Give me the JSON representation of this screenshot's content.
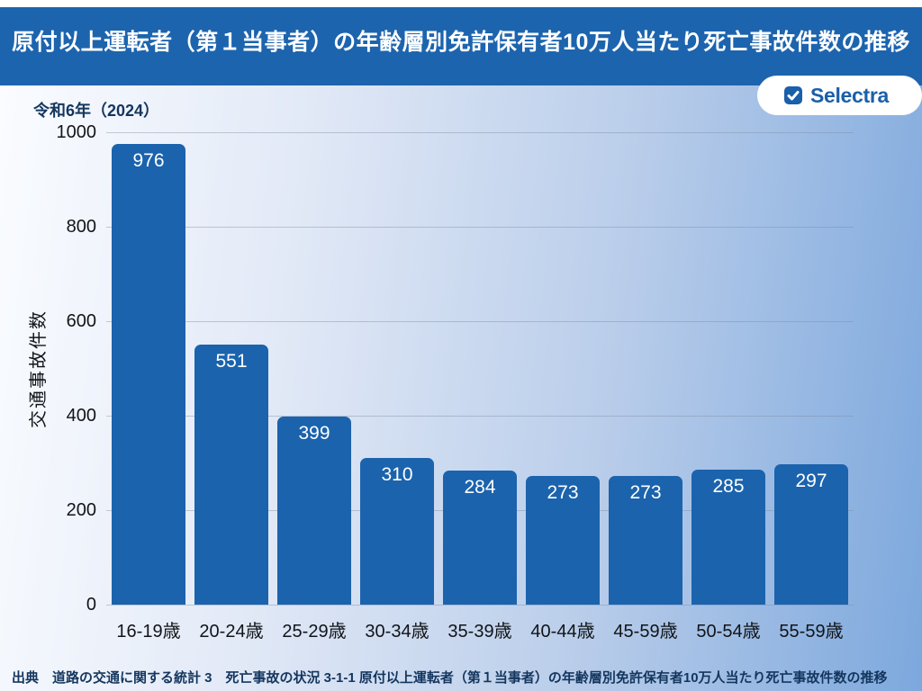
{
  "header": {
    "title": "原付以上運転者（第１当事者）の年齢層別免許保有者10万人当たり死亡事故件数の推移"
  },
  "badge": {
    "label": "Selectra",
    "icon": "check-square-icon",
    "text_color": "#1a5fa9"
  },
  "era_label": "令和6年（2024）",
  "source": {
    "text": "出典　道路の交通に関する統計 3　死亡事故の状況 3-1-1 原付以上運転者（第１当事者）の年齢層別免許保有者10万人当たり死亡事故件数の推移"
  },
  "colors": {
    "header_bg": "#1d64ae",
    "bar": "#1b63ad",
    "value_label": "#ffffff",
    "tick_text": "#111418",
    "era_and_source_text": "#14365e",
    "badge_text": "#1a5fa9",
    "background_gradient_left": "#fafcff",
    "background_gradient_right": "#7da8dd",
    "gridline": "rgba(125,138,160,0.42)"
  },
  "chart_data": {
    "type": "bar",
    "title": "令和6年（2024）",
    "categories": [
      "16-19歳",
      "20-24歳",
      "25-29歳",
      "30-34歳",
      "35-39歳",
      "40-44歳",
      "45-59歳",
      "50-54歳",
      "55-59歳"
    ],
    "values": [
      976,
      551,
      399,
      310,
      284,
      273,
      273,
      285,
      297
    ],
    "xlabel": "",
    "ylabel": "交通事故件数",
    "ylim": [
      0,
      1000
    ],
    "yticks": [
      0,
      200,
      400,
      600,
      800,
      1000
    ],
    "grid": true,
    "legend": "none",
    "value_labels_position": "inside-top"
  }
}
